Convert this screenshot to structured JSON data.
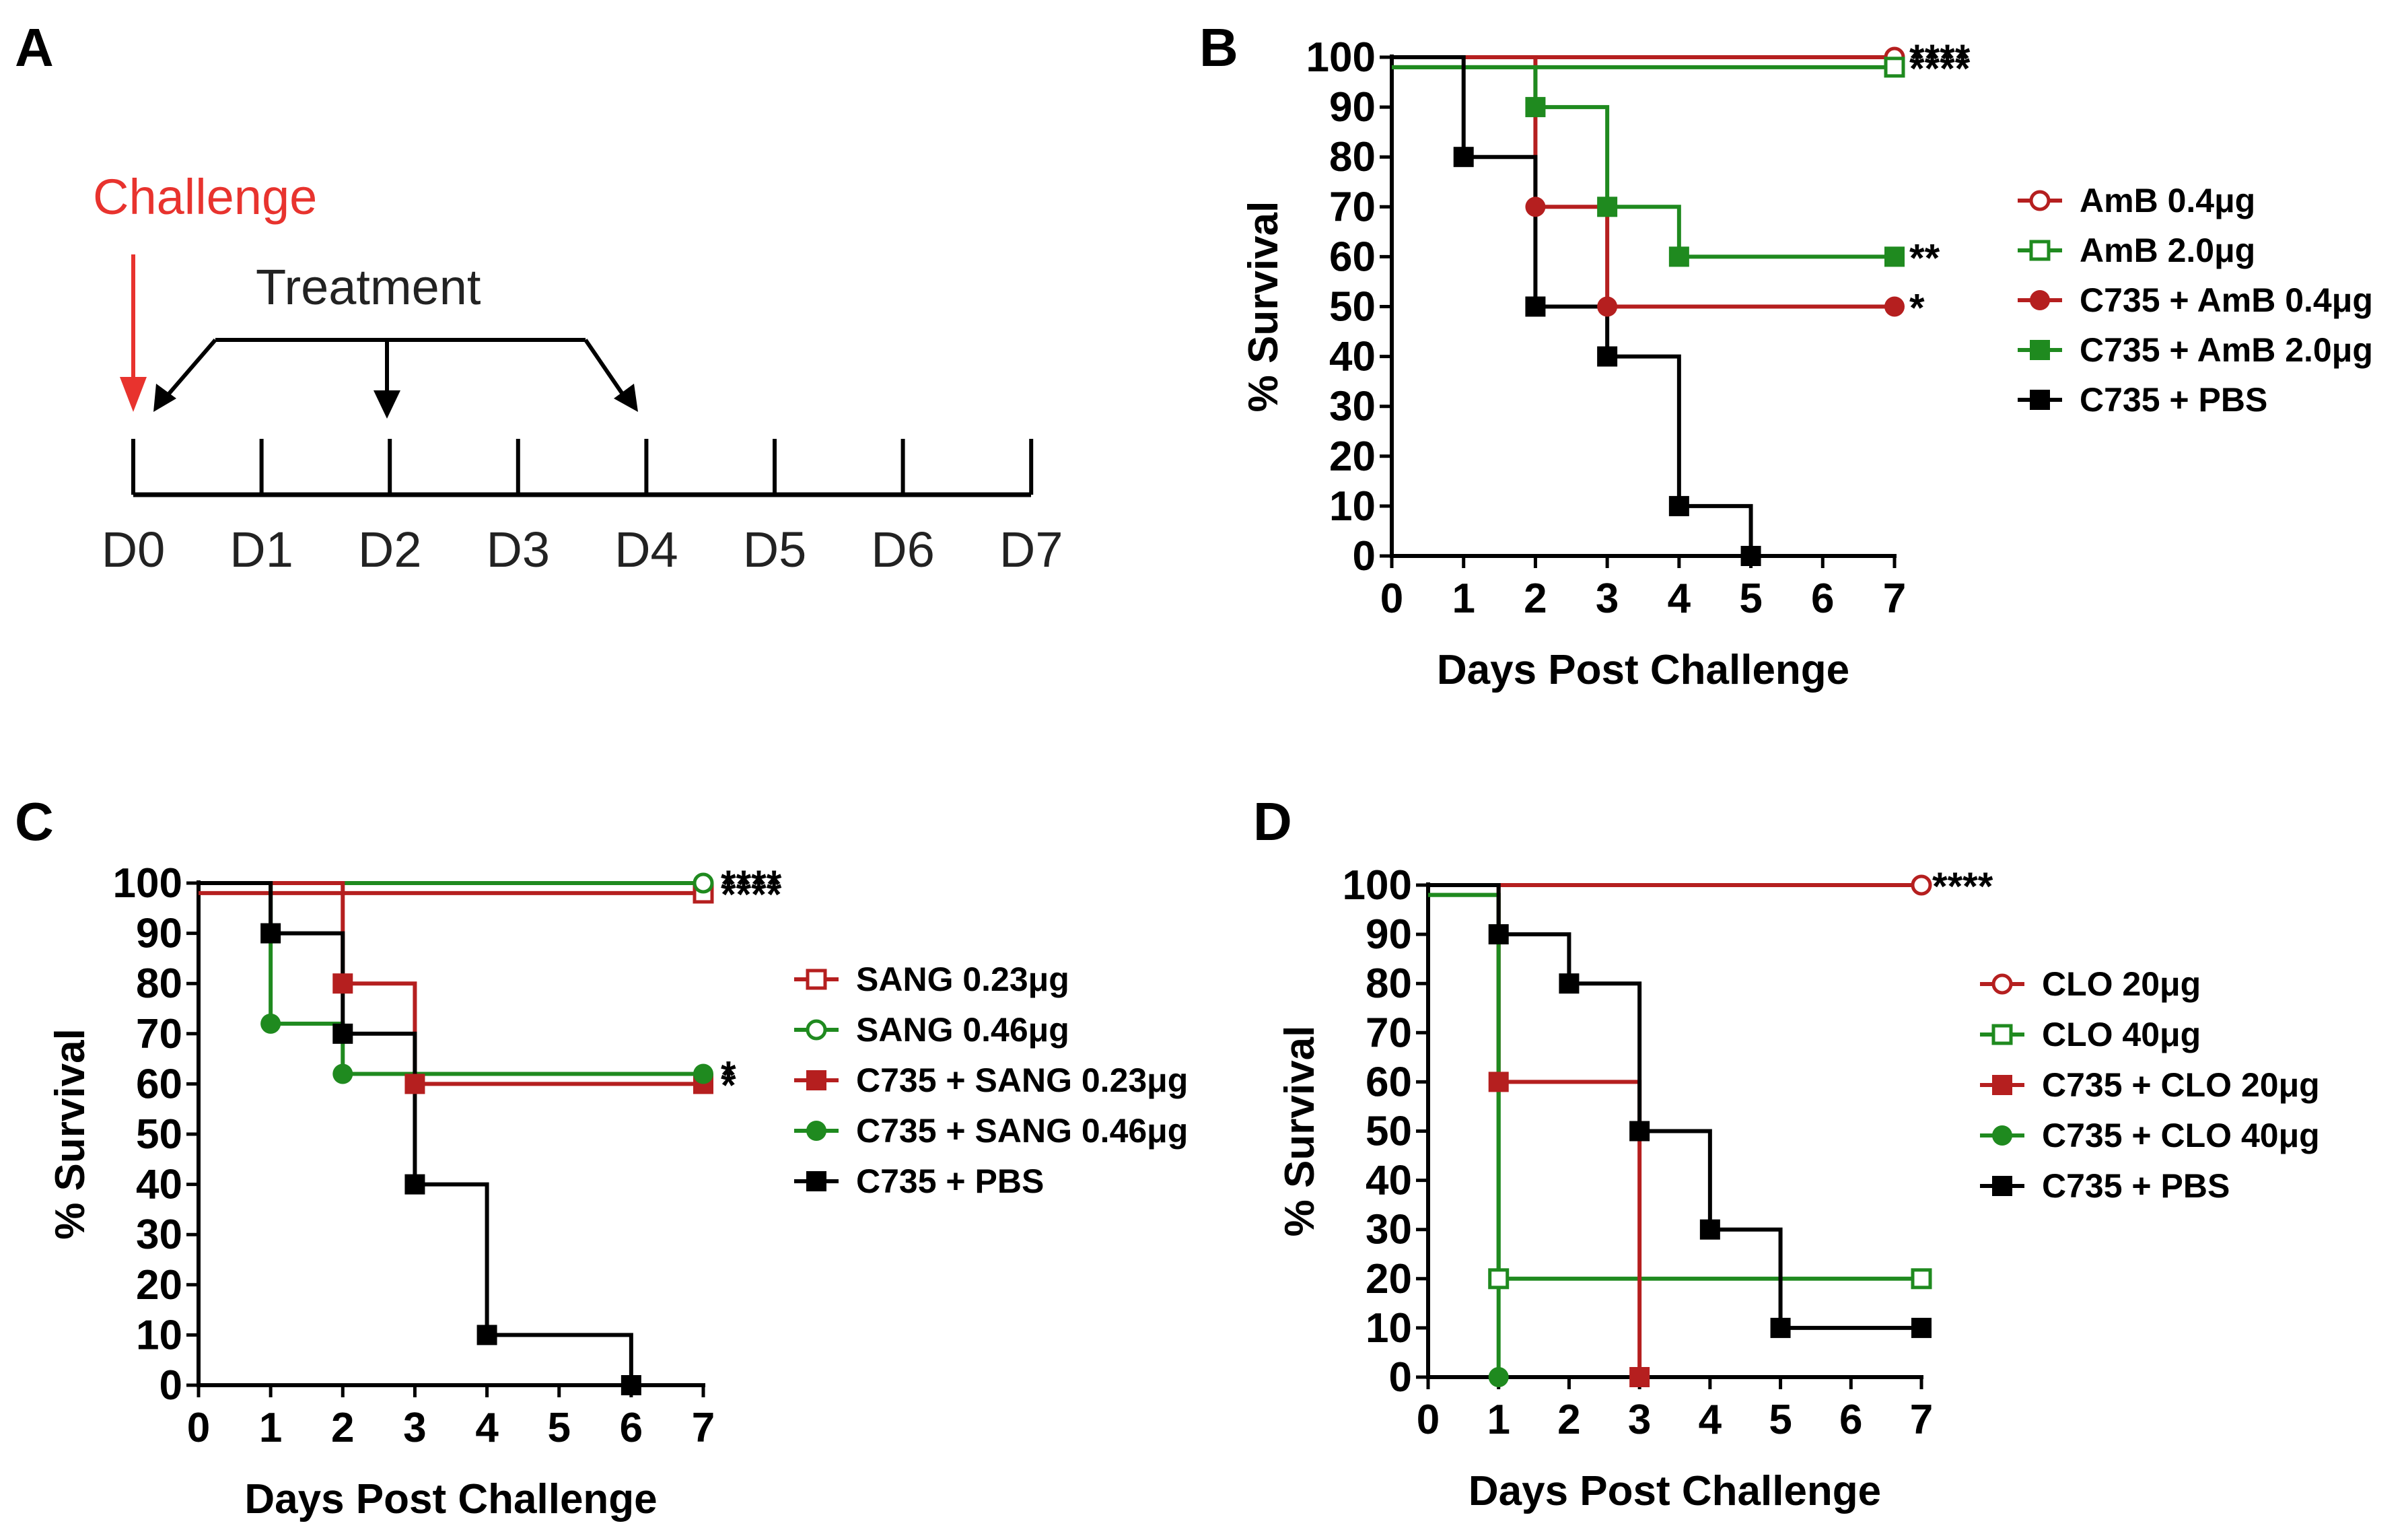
{
  "panels": {
    "A": {
      "letter": "A"
    },
    "B": {
      "letter": "B"
    },
    "C": {
      "letter": "C"
    },
    "D": {
      "letter": "D"
    }
  },
  "timeline": {
    "challenge_label": "Challenge",
    "treatment_label": "Treatment",
    "days": [
      "D0",
      "D1",
      "D2",
      "D3",
      "D4",
      "D5",
      "D6",
      "D7"
    ],
    "challenge_day": 0,
    "treatment_days": [
      0,
      2,
      4
    ],
    "colors": {
      "challenge": "#e8332e",
      "axis": "#000000"
    }
  },
  "chart_data": [
    {
      "panel": "B",
      "type": "line",
      "step": true,
      "xlabel": "Days Post Challenge",
      "ylabel": "% Survival",
      "xlim": [
        0,
        7
      ],
      "ylim": [
        0,
        100
      ],
      "xticks": [
        0,
        1,
        2,
        3,
        4,
        5,
        6,
        7
      ],
      "yticks": [
        0,
        10,
        20,
        30,
        40,
        50,
        60,
        70,
        80,
        90,
        100
      ],
      "legend_position": "right",
      "series": [
        {
          "name": "AmB 0.4μg",
          "color": "#b51f1f",
          "marker": "circle-open",
          "x": [
            0,
            7
          ],
          "y": [
            100,
            100
          ],
          "markers_at": [
            7
          ],
          "sig": "****"
        },
        {
          "name": "AmB 2.0μg",
          "color": "#1f8a1f",
          "marker": "square-open",
          "x": [
            0,
            7
          ],
          "y": [
            98,
            98
          ],
          "markers_at": [
            7
          ],
          "sig": "****"
        },
        {
          "name": "C735 + AmB 0.4μg",
          "color": "#b51f1f",
          "marker": "circle",
          "x": [
            0,
            2,
            3,
            7
          ],
          "y": [
            100,
            70,
            50,
            50
          ],
          "markers_at": [
            2,
            3,
            7
          ],
          "sig": "*"
        },
        {
          "name": "C735 + AmB 2.0μg",
          "color": "#1f8a1f",
          "marker": "square",
          "x": [
            0,
            2,
            3,
            4,
            7
          ],
          "y": [
            98,
            90,
            70,
            60,
            60
          ],
          "markers_at": [
            2,
            3,
            4,
            7
          ],
          "sig": "**"
        },
        {
          "name": "C735 + PBS",
          "color": "#000000",
          "marker": "square",
          "x": [
            0,
            1,
            2,
            3,
            4,
            5
          ],
          "y": [
            100,
            80,
            50,
            40,
            10,
            0
          ],
          "markers_at": [
            1,
            2,
            3,
            4,
            5
          ],
          "sig": ""
        }
      ]
    },
    {
      "panel": "C",
      "type": "line",
      "step": true,
      "xlabel": "Days Post Challenge",
      "ylabel": "% Survival",
      "xlim": [
        0,
        7
      ],
      "ylim": [
        0,
        100
      ],
      "xticks": [
        0,
        1,
        2,
        3,
        4,
        5,
        6,
        7
      ],
      "yticks": [
        0,
        10,
        20,
        30,
        40,
        50,
        60,
        70,
        80,
        90,
        100
      ],
      "legend_position": "right",
      "series": [
        {
          "name": "SANG 0.23μg",
          "color": "#b51f1f",
          "marker": "square-open",
          "x": [
            0,
            7
          ],
          "y": [
            98,
            98
          ],
          "markers_at": [
            7
          ],
          "sig": "****"
        },
        {
          "name": "SANG 0.46μg",
          "color": "#1f8a1f",
          "marker": "circle-open",
          "x": [
            0,
            7
          ],
          "y": [
            100,
            100
          ],
          "markers_at": [
            7
          ],
          "sig": "****"
        },
        {
          "name": "C735 + SANG 0.23μg",
          "color": "#b51f1f",
          "marker": "square",
          "x": [
            0,
            2,
            3,
            7
          ],
          "y": [
            100,
            80,
            60,
            60
          ],
          "markers_at": [
            2,
            3,
            7
          ],
          "sig": "*"
        },
        {
          "name": "C735 + SANG 0.46μg",
          "color": "#1f8a1f",
          "marker": "circle",
          "x": [
            0,
            1,
            2,
            7
          ],
          "y": [
            100,
            72,
            62,
            62
          ],
          "markers_at": [
            1,
            2,
            7
          ],
          "sig": "*"
        },
        {
          "name": "C735 + PBS",
          "color": "#000000",
          "marker": "square",
          "x": [
            0,
            1,
            2,
            3,
            4,
            6
          ],
          "y": [
            100,
            90,
            70,
            40,
            10,
            0
          ],
          "markers_at": [
            1,
            2,
            3,
            4,
            6
          ],
          "sig": ""
        }
      ]
    },
    {
      "panel": "D",
      "type": "line",
      "step": true,
      "xlabel": "Days Post Challenge",
      "ylabel": "% Survival",
      "xlim": [
        0,
        7
      ],
      "ylim": [
        0,
        100
      ],
      "xticks": [
        0,
        1,
        2,
        3,
        4,
        5,
        6,
        7
      ],
      "yticks": [
        0,
        10,
        20,
        30,
        40,
        50,
        60,
        70,
        80,
        90,
        100
      ],
      "legend_position": "right",
      "series": [
        {
          "name": "CLO 20μg",
          "color": "#b51f1f",
          "marker": "circle-open",
          "x": [
            0,
            7
          ],
          "y": [
            100,
            100
          ],
          "markers_at": [
            7
          ],
          "sig": "****"
        },
        {
          "name": "CLO 40μg",
          "color": "#1f8a1f",
          "marker": "square-open",
          "x": [
            0,
            1,
            7
          ],
          "y": [
            98,
            20,
            20
          ],
          "markers_at": [
            1,
            7
          ],
          "sig": ""
        },
        {
          "name": "C735 + CLO 20μg",
          "color": "#b51f1f",
          "marker": "square",
          "x": [
            0,
            1,
            3
          ],
          "y": [
            100,
            60,
            0
          ],
          "markers_at": [
            1,
            3
          ],
          "sig": ""
        },
        {
          "name": "C735 + CLO 40μg",
          "color": "#1f8a1f",
          "marker": "circle",
          "x": [
            0,
            1
          ],
          "y": [
            98,
            0
          ],
          "markers_at": [
            1
          ],
          "sig": ""
        },
        {
          "name": "C735 + PBS",
          "color": "#000000",
          "marker": "square",
          "x": [
            0,
            1,
            2,
            3,
            4,
            5,
            7
          ],
          "y": [
            100,
            90,
            80,
            50,
            30,
            10,
            10
          ],
          "markers_at": [
            1,
            2,
            3,
            4,
            5,
            7
          ],
          "sig": ""
        }
      ]
    }
  ]
}
